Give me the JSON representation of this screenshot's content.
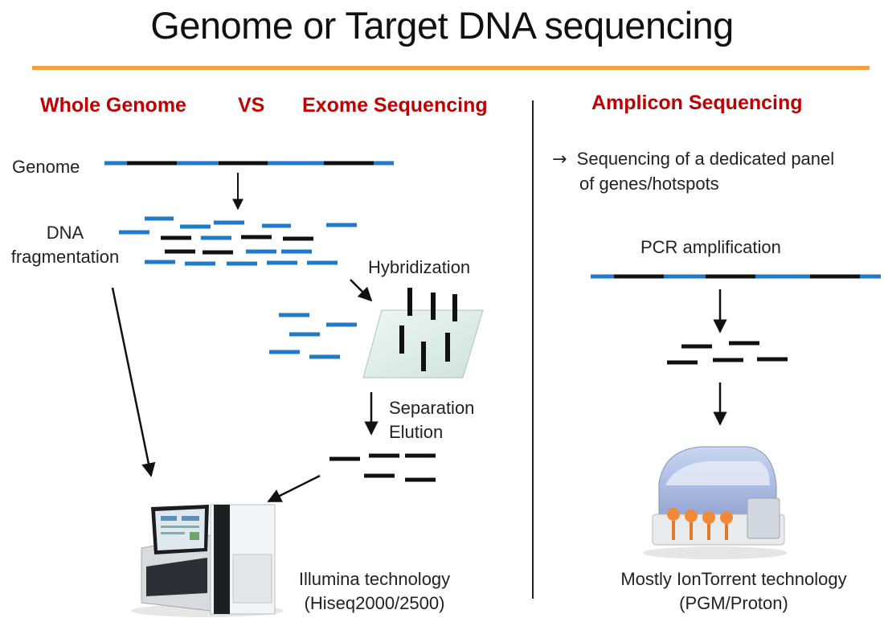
{
  "title": "Genome or Target DNA sequencing",
  "left_headers": {
    "whole_genome": "Whole Genome",
    "vs": "VS",
    "exome": "Exome Sequencing"
  },
  "right_header": "Amplicon Sequencing",
  "labels": {
    "genome": "Genome",
    "dna_line1": "DNA",
    "dna_line2": "fragmentation",
    "hybridization": "Hybridization",
    "separation": "Separation",
    "elution": "Elution",
    "illumina_line1": "Illumina technology",
    "illumina_line2": "(Hiseq2000/2500)",
    "amplicon_line1": "Sequencing of a dedicated panel",
    "amplicon_line2": "of genes/hotspots",
    "pcr": "PCR amplification",
    "iontorrent_line1": "Mostly IonTorrent technology",
    "iontorrent_line2": "(PGM/Proton)"
  },
  "colors": {
    "accent_rule": "#f5a03a",
    "header_red": "#c00000",
    "dna_blue": "#1f78c8",
    "dna_black": "#111111"
  }
}
